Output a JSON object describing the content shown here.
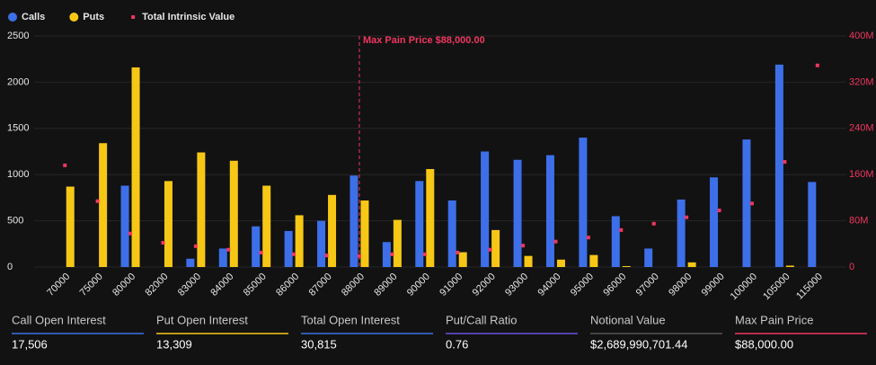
{
  "chart_data": {
    "type": "bar",
    "categories": [
      "70000",
      "75000",
      "80000",
      "82000",
      "83000",
      "84000",
      "85000",
      "86000",
      "87000",
      "88000",
      "89000",
      "90000",
      "91000",
      "92000",
      "93000",
      "94000",
      "95000",
      "96000",
      "97000",
      "98000",
      "99000",
      "100000",
      "105000",
      "115000"
    ],
    "series": [
      {
        "name": "Calls",
        "type": "bar",
        "axis": "y",
        "color": "#3d6fe8",
        "values": [
          0,
          0,
          880,
          0,
          90,
          200,
          440,
          390,
          500,
          990,
          270,
          930,
          720,
          1250,
          1160,
          1210,
          1400,
          550,
          200,
          730,
          970,
          1380,
          2190,
          920
        ]
      },
      {
        "name": "Puts",
        "type": "bar",
        "axis": "y",
        "color": "#f7c716",
        "values": [
          870,
          1340,
          2160,
          930,
          1240,
          1150,
          880,
          560,
          780,
          720,
          510,
          1060,
          160,
          400,
          120,
          80,
          130,
          10,
          0,
          50,
          0,
          0,
          15,
          0
        ]
      },
      {
        "name": "Total Intrinsic Value",
        "type": "scatter",
        "axis": "y2",
        "color": "#f0365f",
        "values": [
          176000000,
          114000000,
          58000000,
          42000000,
          36000000,
          30000000,
          25000000,
          22000000,
          20000000,
          19000000,
          22000000,
          22000000,
          25000000,
          30000000,
          37000000,
          44000000,
          51000000,
          64000000,
          75000000,
          86000000,
          98000000,
          110000000,
          182000000,
          349000000
        ]
      }
    ],
    "ylim": [
      0,
      2500
    ],
    "yticks": [
      0,
      500,
      1000,
      1500,
      2000,
      2500
    ],
    "y2lim": [
      0,
      400000000
    ],
    "y2ticks": [
      {
        "value": 0,
        "label": "0"
      },
      {
        "value": 80000000,
        "label": "80M"
      },
      {
        "value": 160000000,
        "label": "160M"
      },
      {
        "value": 240000000,
        "label": "240M"
      },
      {
        "value": 320000000,
        "label": "320M"
      },
      {
        "value": 400000000,
        "label": "400M"
      }
    ],
    "grid": true,
    "annotation": {
      "text": "Max Pain Price $88,000.00",
      "category": "88000",
      "color": "#f0365f"
    }
  },
  "stats": [
    {
      "label": "Call Open Interest",
      "value": "17,506",
      "color": "#3d6fe8"
    },
    {
      "label": "Put Open Interest",
      "value": "13,309",
      "color": "#f7c716"
    },
    {
      "label": "Total Open Interest",
      "value": "30,815",
      "color": "#3d6fe8"
    },
    {
      "label": "Put/Call Ratio",
      "value": "0.76",
      "color": "#6a52e0"
    },
    {
      "label": "Notional Value",
      "value": "$2,689,990,701.44",
      "color": "#555555"
    },
    {
      "label": "Max Pain Price",
      "value": "$88,000.00",
      "color": "#f0365f"
    }
  ]
}
